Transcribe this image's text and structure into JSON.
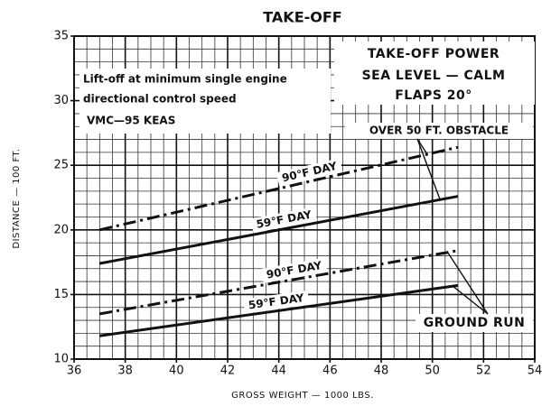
{
  "chart_data": {
    "type": "line",
    "title": "TAKE-OFF",
    "xlabel": "GROSS WEIGHT — 1000 LBS.",
    "ylabel": "DISTANCE — 100 FT.",
    "xlim": [
      36,
      54
    ],
    "xticks": [
      36,
      38,
      40,
      42,
      44,
      46,
      48,
      50,
      52,
      54
    ],
    "ylim": [
      10,
      35
    ],
    "yticks": [
      10,
      15,
      20,
      25,
      30,
      35
    ],
    "grid": true,
    "series": [
      {
        "name": "90°F DAY",
        "color": "#111111",
        "style": "dash-dot",
        "x": [
          37,
          51
        ],
        "values": [
          20.0,
          26.4
        ]
      },
      {
        "name": "59°F DAY",
        "color": "#111111",
        "style": "solid",
        "x": [
          37,
          51
        ],
        "values": [
          17.4,
          22.6
        ]
      },
      {
        "name": "90°F DAY",
        "color": "#111111",
        "style": "dash-dot",
        "x": [
          37,
          51
        ],
        "values": [
          13.5,
          18.4
        ]
      },
      {
        "name": "59°F DAY",
        "color": "#111111",
        "style": "solid",
        "x": [
          37,
          51
        ],
        "values": [
          11.8,
          15.7
        ]
      }
    ],
    "annotations": [
      "Lift-off at minimum single engine",
      "directional control speed",
      "VMC—95 KEAS",
      "TAKE-OFF POWER",
      "SEA LEVEL — CALM",
      "FLAPS 20°",
      "OVER 50 FT. OBSTACLE",
      "GROUND RUN"
    ]
  }
}
